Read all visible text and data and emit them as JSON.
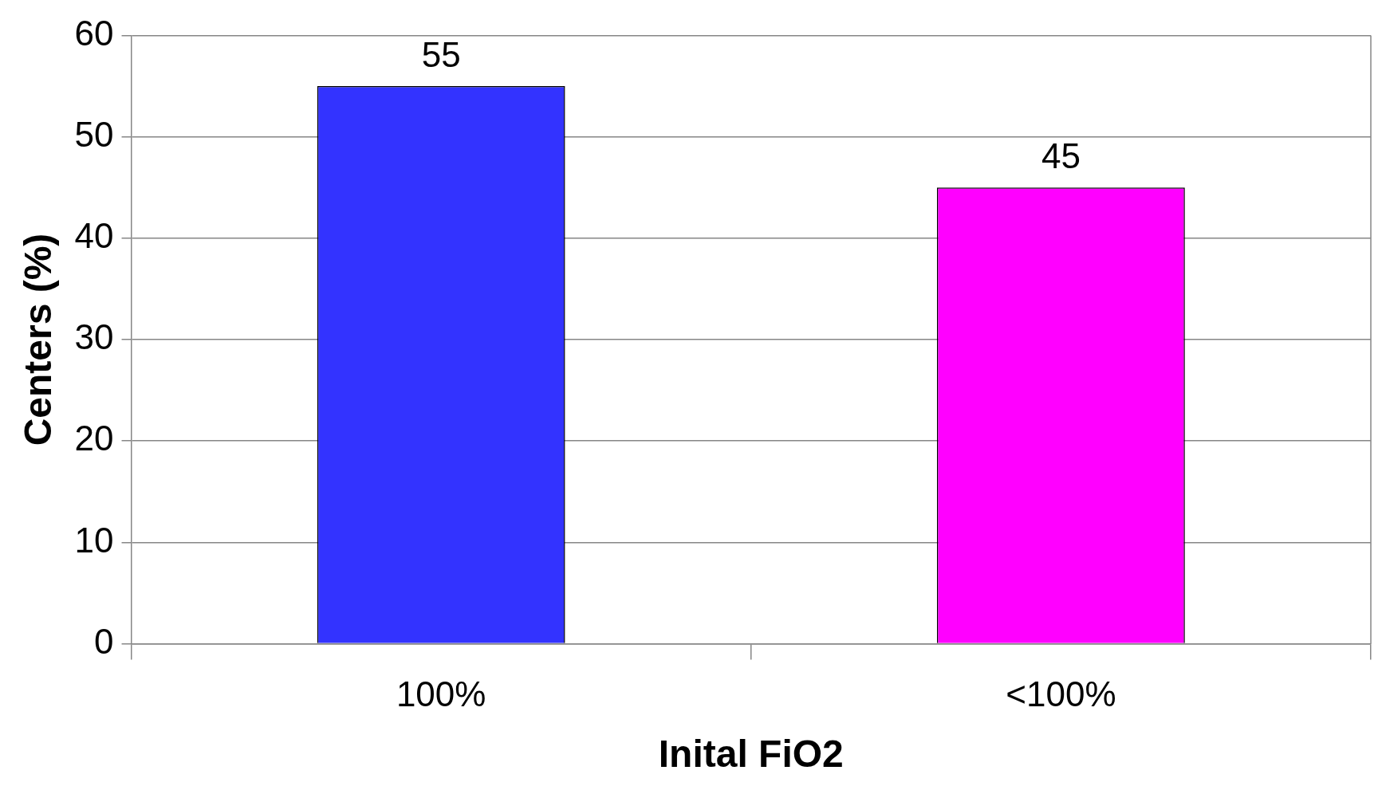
{
  "chart_data": {
    "type": "bar",
    "xlabel": "Inital FiO2",
    "ylabel": "Centers (%)",
    "categories": [
      "100%",
      "<100%"
    ],
    "values": [
      55,
      45
    ],
    "colors": [
      "#3333ff",
      "#ff00ff"
    ],
    "ylim": [
      0,
      60
    ],
    "yticks": [
      0,
      10,
      20,
      30,
      40,
      50,
      60
    ],
    "grid": "y",
    "data_labels": true,
    "legend": false
  }
}
